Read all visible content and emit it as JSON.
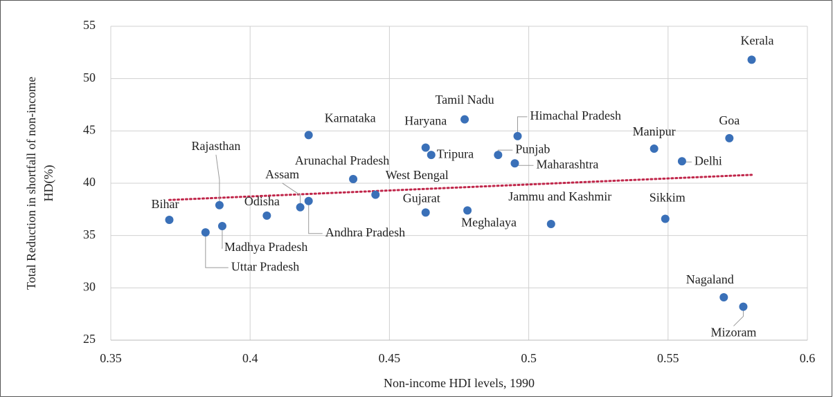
{
  "chart_data": {
    "type": "scatter",
    "x_label": "Non-income HDI levels, 1990",
    "y_label": [
      "Total Reduction in shortfall of non-income",
      "HD(%)"
    ],
    "xlim": [
      0.35,
      0.6
    ],
    "xticks": [
      0.35,
      0.4,
      0.45,
      0.5,
      0.55,
      0.6
    ],
    "ylim": [
      25,
      55
    ],
    "yticks": [
      25,
      30,
      35,
      40,
      45,
      50,
      55
    ],
    "grid": true,
    "color": "#3a70b8",
    "labels": [
      "Kerala",
      "Goa",
      "Manipur",
      "Delhi",
      "Sikkim",
      "Nagaland",
      "Mizoram",
      "Jammu and Kashmir",
      "Meghalaya",
      "Gujarat",
      "West Bengal",
      "Arunachal Pradesh",
      "Tripura",
      "Haryana",
      "Tamil Nadu",
      "Himachal Pradesh",
      "Karnataka",
      "Punjab",
      "Maharashtra",
      "Assam",
      "Andhra Pradesh",
      "Odisha",
      "Rajasthan",
      "Madhya Pradesh",
      "Uttar Pradesh",
      "Bihar"
    ],
    "x": [
      0.58,
      0.572,
      0.545,
      0.555,
      0.549,
      0.57,
      0.577,
      0.508,
      0.478,
      0.463,
      0.445,
      0.437,
      0.465,
      0.463,
      0.477,
      0.496,
      0.421,
      0.489,
      0.495,
      0.418,
      0.421,
      0.406,
      0.389,
      0.39,
      0.384,
      0.371
    ],
    "y": [
      51.8,
      44.3,
      43.3,
      42.1,
      36.6,
      29.1,
      28.2,
      36.1,
      37.4,
      37.2,
      38.9,
      40.4,
      42.7,
      43.4,
      46.1,
      44.5,
      44.6,
      42.7,
      41.9,
      37.7,
      38.3,
      36.9,
      37.9,
      35.9,
      35.3,
      36.5
    ],
    "trendline": {
      "x": [
        0.371,
        0.58
      ],
      "y": [
        38.4,
        40.8
      ],
      "color": "#c0264a"
    }
  }
}
